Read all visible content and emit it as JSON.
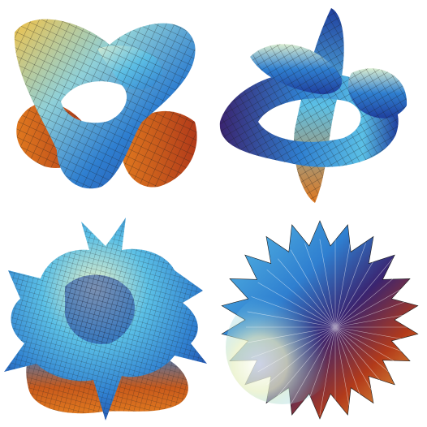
{
  "figure": {
    "panels": [
      {
        "id": "surface-1",
        "description": ""
      },
      {
        "id": "surface-2",
        "description": ""
      },
      {
        "id": "surface-3",
        "description": ""
      },
      {
        "id": "surface-4",
        "description": ""
      }
    ]
  },
  "colors": {
    "background": "#ffffff",
    "deep_blue": "#1f3f9e",
    "mid_blue": "#2f7fd0",
    "cyan": "#5bc0e6",
    "pale": "#e9f1c8",
    "yellow": "#f0c24a",
    "orange": "#e0781f",
    "red": "#b23a1a",
    "purple": "#3a2470",
    "mesh": "#1b1b1b"
  }
}
